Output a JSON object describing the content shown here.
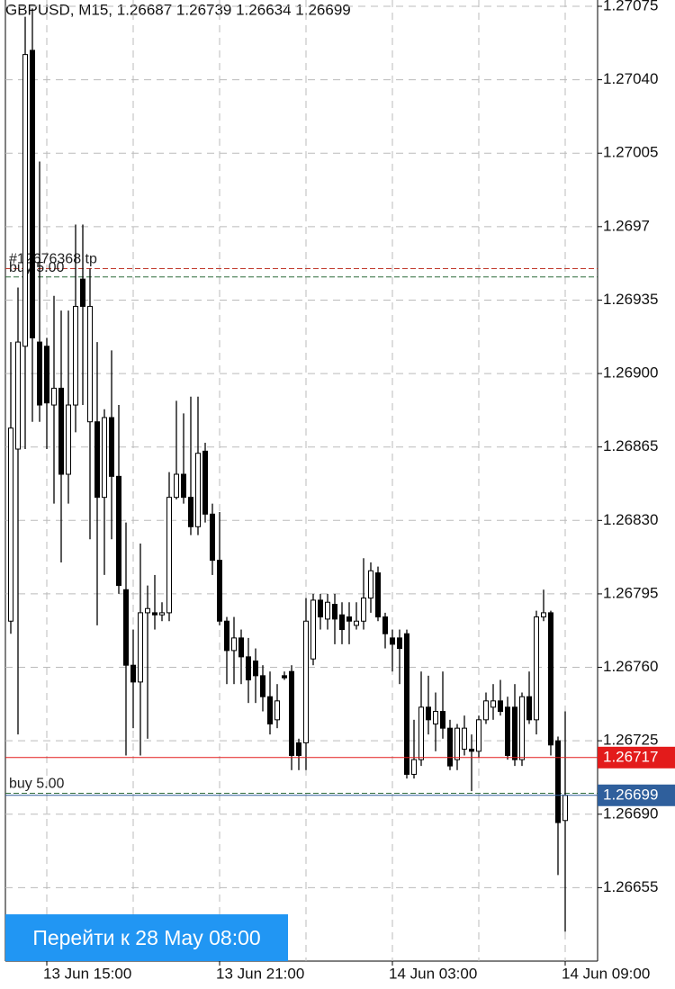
{
  "chart_data": {
    "type": "candlestick",
    "title": "GBPUSD, M15, 1.26687 1.26739 1.26634 1.26699",
    "categories": [
      null,
      null,
      null,
      null,
      null,
      "13 Jun 15:00",
      null,
      null,
      null,
      null,
      null,
      null,
      null,
      null,
      null,
      null,
      null,
      null,
      null,
      null,
      null,
      null,
      null,
      null,
      null,
      null,
      null,
      null,
      null,
      "13 Jun 21:00",
      null,
      null,
      null,
      null,
      null,
      null,
      null,
      null,
      null,
      null,
      null,
      null,
      null,
      null,
      null,
      null,
      null,
      null,
      null,
      null,
      null,
      null,
      null,
      "14 Jun 03:00",
      null,
      null,
      null,
      null,
      null,
      null,
      null,
      null,
      null,
      null,
      null,
      null,
      null,
      null,
      null,
      null,
      null,
      null,
      null,
      null,
      null,
      null,
      null,
      "14 Jun 09:00"
    ],
    "open": [
      1.26782,
      1.26864,
      1.26913,
      1.27054,
      1.26915,
      1.26913,
      1.26885,
      1.26893,
      1.26852,
      1.26885,
      1.26945,
      1.26877,
      1.26877,
      1.26841,
      1.26879,
      1.26851,
      1.26797,
      1.26761,
      1.26753,
      1.26786,
      1.26786,
      1.26785,
      1.26786,
      1.26841,
      1.26852,
      1.26841,
      1.26827,
      1.26863,
      1.26833,
      1.26811,
      1.26782,
      1.26768,
      1.26774,
      1.26765,
      1.26763,
      1.26756,
      1.26746,
      1.26735,
      1.26756,
      1.26758,
      1.26724,
      1.26724,
      1.26764,
      1.26792,
      1.26783,
      1.2679,
      1.26785,
      1.26784,
      1.2678,
      1.26782,
      1.26793,
      1.26805,
      1.26784,
      1.26774,
      1.26774,
      1.26776,
      1.26709,
      1.26716,
      1.26741,
      1.26733,
      1.26739,
      1.26731,
      1.26716,
      1.26721,
      1.26721,
      1.2672,
      1.26735,
      1.26741,
      1.26744,
      1.26741,
      1.26741,
      1.26716,
      1.26746,
      1.26735,
      1.26784,
      1.26786,
      1.26725,
      1.26687
    ],
    "high": [
      1.26915,
      1.26941,
      1.2707,
      1.27074,
      1.27001,
      1.26917,
      1.26937,
      1.2693,
      1.2693,
      1.26971,
      1.26971,
      1.2695,
      1.26915,
      1.26883,
      1.26911,
      1.26885,
      1.26829,
      1.26778,
      1.26819,
      1.26799,
      1.26804,
      1.26791,
      1.26853,
      1.26887,
      1.26881,
      1.26889,
      1.26889,
      1.26867,
      1.26838,
      1.26834,
      1.26784,
      1.26784,
      1.26778,
      1.26774,
      1.26769,
      1.26761,
      1.26758,
      1.26752,
      1.26758,
      1.26761,
      1.26726,
      1.26793,
      1.26795,
      1.26795,
      1.26795,
      1.26795,
      1.26791,
      1.26791,
      1.26791,
      1.26812,
      1.2681,
      1.26808,
      1.26786,
      1.26778,
      1.26778,
      1.26778,
      1.26735,
      1.26758,
      1.26756,
      1.26748,
      1.26758,
      1.26735,
      1.26733,
      1.26737,
      1.26728,
      1.26737,
      1.26748,
      1.26752,
      1.26754,
      1.26746,
      1.26752,
      1.26748,
      1.26758,
      1.26787,
      1.26797,
      1.26787,
      1.26727,
      1.26739
    ],
    "low": [
      1.26776,
      1.26728,
      1.26864,
      1.26877,
      1.26877,
      1.26864,
      1.26838,
      1.2681,
      1.26838,
      1.26872,
      1.26885,
      1.26821,
      1.2678,
      1.26804,
      1.26821,
      1.26795,
      1.26718,
      1.26731,
      1.26718,
      1.26726,
      1.26778,
      1.26782,
      1.26782,
      1.2684,
      1.26838,
      1.26823,
      1.26823,
      1.26829,
      1.26804,
      1.2678,
      1.26752,
      1.26752,
      1.26752,
      1.26743,
      1.26743,
      1.26739,
      1.26728,
      1.26731,
      1.26754,
      1.26711,
      1.26711,
      1.26711,
      1.26761,
      1.26778,
      1.26778,
      1.26771,
      1.26771,
      1.26771,
      1.26778,
      1.26778,
      1.26786,
      1.26782,
      1.26769,
      1.26758,
      1.26752,
      1.26707,
      1.26707,
      1.26713,
      1.26728,
      1.2672,
      1.26726,
      1.26711,
      1.26711,
      1.26718,
      1.26701,
      1.26717,
      1.26733,
      1.26735,
      1.26737,
      1.26716,
      1.26713,
      1.26713,
      1.26733,
      1.26728,
      1.26782,
      1.26718,
      1.26661,
      1.26634
    ],
    "close": [
      1.26874,
      1.26915,
      1.27052,
      1.26917,
      1.26885,
      1.26886,
      1.26893,
      1.26852,
      1.26885,
      1.26932,
      1.26932,
      1.26932,
      1.26841,
      1.26879,
      1.26851,
      1.26799,
      1.26761,
      1.26753,
      1.26786,
      1.26788,
      1.26785,
      1.26786,
      1.26841,
      1.26852,
      1.26841,
      1.26827,
      1.26862,
      1.26833,
      1.26811,
      1.26782,
      1.26768,
      1.26774,
      1.26765,
      1.26754,
      1.26756,
      1.26746,
      1.26733,
      1.26744,
      1.26755,
      1.26718,
      1.26718,
      1.26782,
      1.26792,
      1.26784,
      1.26791,
      1.26783,
      1.26778,
      1.26782,
      1.26782,
      1.26793,
      1.26806,
      1.26784,
      1.26776,
      1.26771,
      1.26769,
      1.26709,
      1.26716,
      1.26741,
      1.26735,
      1.26739,
      1.26731,
      1.26713,
      1.26731,
      1.26731,
      1.2672,
      1.26735,
      1.26744,
      1.26744,
      1.26739,
      1.26718,
      1.26716,
      1.26746,
      1.26735,
      1.26784,
      1.26786,
      1.26723,
      1.26686,
      1.26699
    ],
    "ylim": [
      1.2662,
      1.27078
    ],
    "yticks": [
      1.26655,
      {
        "value": 1.2669,
        "label": "1.26690"
      },
      1.26725,
      {
        "value": 1.2676,
        "label": "1.26760"
      },
      1.26795,
      {
        "value": 1.2683,
        "label": "1.26830"
      },
      1.26865,
      {
        "value": 1.269,
        "label": "1.26900"
      },
      1.26935,
      1.2697,
      1.27005,
      {
        "value": 1.2704,
        "label": "1.27040"
      },
      1.27075
    ],
    "grid": true,
    "price_lines": [
      {
        "value": 1.26717,
        "color": "#e31b1b"
      },
      {
        "value": 1.26699,
        "color": "#2f5f9c"
      }
    ],
    "orders": [
      {
        "label": "#12676368 tp",
        "value": 1.2695,
        "color": "#c0392b"
      },
      {
        "label": "buy 5.00",
        "value": 1.26946,
        "color": "#2e6b3a"
      },
      {
        "label": "buy 5.00",
        "value": 1.267,
        "color": "#2e6b3a"
      }
    ]
  },
  "button": {
    "label": "Перейти к 28 May 08:00"
  }
}
